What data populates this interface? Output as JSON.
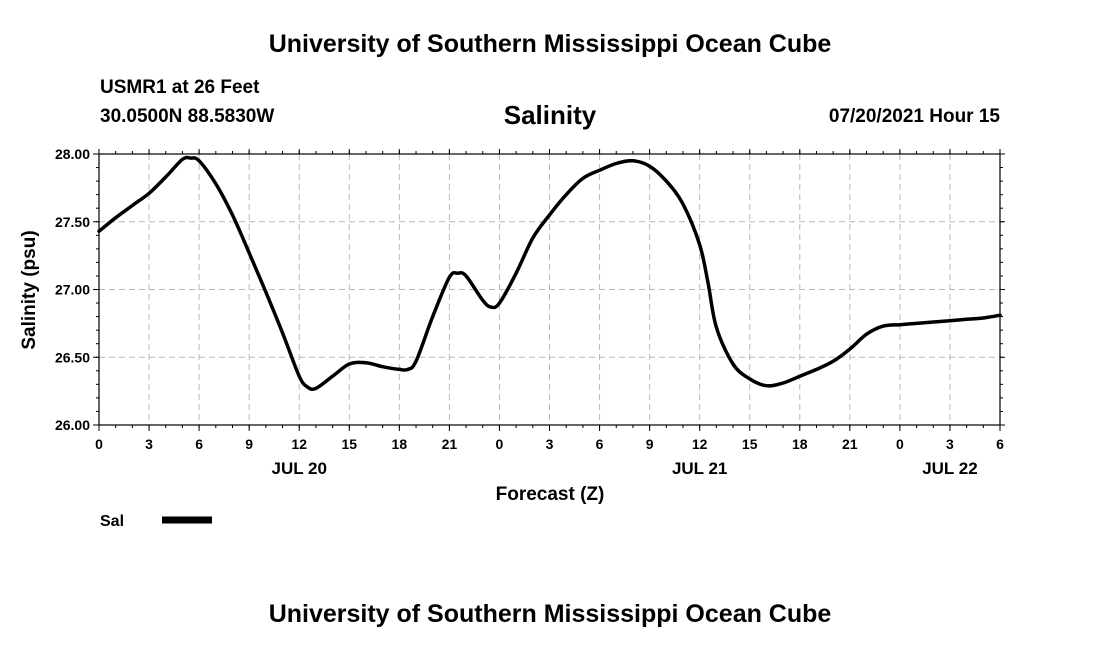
{
  "header": {
    "title": "University of Southern Mississippi Ocean Cube",
    "station": "USMR1 at 26 Feet",
    "coords": "30.0500N  88.5830W",
    "datetime": "07/20/2021 Hour 15"
  },
  "footer": {
    "title": "University of Southern Mississippi Ocean Cube"
  },
  "chart_data": {
    "type": "line",
    "title": "Salinity",
    "xlabel": "Forecast (Z)",
    "ylabel": "Salinity (psu)",
    "ylim": [
      26.0,
      28.0
    ],
    "y_ticks": [
      "26.00",
      "26.50",
      "27.00",
      "27.50",
      "28.00"
    ],
    "y_tick_values": [
      26.0,
      26.5,
      27.0,
      27.5,
      28.0
    ],
    "x_range_hours": [
      0,
      54
    ],
    "x_ticks": [
      "0",
      "3",
      "6",
      "9",
      "12",
      "15",
      "18",
      "21",
      "0",
      "3",
      "6",
      "9",
      "12",
      "15",
      "18",
      "21",
      "0",
      "3",
      "6"
    ],
    "date_labels": [
      {
        "label": "JUL 20",
        "hour": 12
      },
      {
        "label": "JUL 21",
        "hour": 36
      },
      {
        "label": "JUL 22",
        "hour": 51
      }
    ],
    "grid": true,
    "legend_position": "bottom-left",
    "series": [
      {
        "name": "Sal",
        "color": "#000000",
        "x": [
          0,
          1,
          2,
          3,
          4,
          5,
          5.5,
          6,
          7,
          8,
          9,
          10,
          11,
          12,
          12.5,
          13,
          14,
          15,
          16,
          17,
          18,
          18.5,
          19,
          20,
          21,
          21.5,
          22,
          23,
          23.5,
          24,
          25,
          26,
          27,
          28,
          29,
          30,
          31,
          32,
          33,
          34,
          35,
          36,
          36.5,
          37,
          38,
          39,
          40,
          41,
          42,
          43,
          44,
          45,
          46,
          47,
          48,
          49,
          50,
          51,
          52,
          53,
          54
        ],
        "y": [
          27.43,
          27.53,
          27.62,
          27.71,
          27.83,
          27.96,
          27.97,
          27.95,
          27.78,
          27.55,
          27.27,
          26.98,
          26.68,
          26.36,
          26.28,
          26.27,
          26.36,
          26.45,
          26.46,
          26.43,
          26.41,
          26.41,
          26.47,
          26.8,
          27.09,
          27.12,
          27.1,
          26.92,
          26.87,
          26.9,
          27.12,
          27.38,
          27.55,
          27.7,
          27.82,
          27.88,
          27.93,
          27.95,
          27.91,
          27.8,
          27.63,
          27.33,
          27.05,
          26.72,
          26.45,
          26.34,
          26.29,
          26.31,
          26.36,
          26.41,
          26.47,
          26.56,
          26.67,
          26.73,
          26.74,
          26.75,
          26.76,
          26.77,
          26.78,
          26.79,
          26.81
        ]
      }
    ]
  }
}
